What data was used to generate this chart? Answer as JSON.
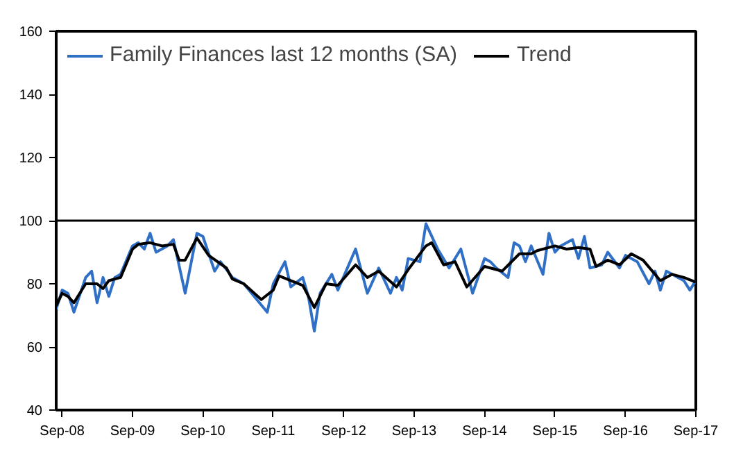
{
  "chart_data": {
    "type": "line",
    "xlim": [
      "2008-08",
      "2017-09"
    ],
    "ylim": [
      40,
      160
    ],
    "yticks": [
      40,
      60,
      80,
      100,
      120,
      140,
      160
    ],
    "xticks": [
      {
        "value": "2008-09",
        "label": "Sep-08"
      },
      {
        "value": "2009-09",
        "label": "Sep-09"
      },
      {
        "value": "2010-09",
        "label": "Sep-10"
      },
      {
        "value": "2011-09",
        "label": "Sep-11"
      },
      {
        "value": "2012-09",
        "label": "Sep-12"
      },
      {
        "value": "2013-09",
        "label": "Sep-13"
      },
      {
        "value": "2014-09",
        "label": "Sep-14"
      },
      {
        "value": "2015-09",
        "label": "Sep-15"
      },
      {
        "value": "2016-09",
        "label": "Sep-16"
      },
      {
        "value": "2017-09",
        "label": "Sep-17"
      }
    ],
    "grid": false,
    "legend": "top left",
    "ref_lines": [
      {
        "axis": "y",
        "value": 100,
        "color": "#000000"
      }
    ],
    "series": [
      {
        "name": "Family Finances last 12 months (SA)",
        "color": "#2f6fc6",
        "x": [
          "2008-08",
          "2008-09",
          "2008-10",
          "2008-11",
          "2009-01",
          "2009-02",
          "2009-03",
          "2009-04",
          "2009-05",
          "2009-06",
          "2009-07",
          "2009-09",
          "2009-10",
          "2009-11",
          "2009-12",
          "2010-01",
          "2010-03",
          "2010-04",
          "2010-06",
          "2010-08",
          "2010-09",
          "2010-11",
          "2010-12",
          "2011-02",
          "2011-04",
          "2011-08",
          "2011-09",
          "2011-11",
          "2011-12",
          "2012-02",
          "2012-03",
          "2012-04",
          "2012-05",
          "2012-07",
          "2012-08",
          "2012-11",
          "2013-01",
          "2013-03",
          "2013-05",
          "2013-06",
          "2013-07",
          "2013-08",
          "2013-10",
          "2013-11",
          "2014-01",
          "2014-03",
          "2014-05",
          "2014-07",
          "2014-09",
          "2014-10",
          "2014-11",
          "2015-01",
          "2015-02",
          "2015-03",
          "2015-04",
          "2015-05",
          "2015-07",
          "2015-08",
          "2015-09",
          "2015-10",
          "2015-12",
          "2016-01",
          "2016-02",
          "2016-03",
          "2016-05",
          "2016-06",
          "2016-08",
          "2016-09",
          "2016-11",
          "2017-01",
          "2017-02",
          "2017-03",
          "2017-04",
          "2017-06",
          "2017-07",
          "2017-08",
          "2017-09"
        ],
        "values": [
          72,
          78,
          77,
          71,
          82,
          84,
          74,
          82,
          76,
          82,
          83,
          92,
          93,
          91,
          96,
          90,
          92,
          94,
          77,
          96,
          95,
          84,
          87,
          82,
          80,
          71,
          80,
          87,
          79,
          82,
          76,
          65,
          77,
          83,
          78,
          91,
          77,
          85,
          77,
          82,
          78,
          88,
          87,
          99,
          91,
          85,
          91,
          77,
          88,
          87,
          85,
          82,
          93,
          92,
          87,
          92,
          83,
          96,
          90,
          92,
          94,
          88,
          95,
          85,
          86,
          90,
          85,
          89,
          87,
          80,
          84,
          78,
          84,
          82,
          81,
          78,
          81
        ]
      },
      {
        "name": "Trend",
        "color": "#000000",
        "x": [
          "2008-08",
          "2008-09",
          "2008-10",
          "2008-11",
          "2009-01",
          "2009-03",
          "2009-04",
          "2009-05",
          "2009-07",
          "2009-09",
          "2009-10",
          "2009-12",
          "2010-02",
          "2010-04",
          "2010-05",
          "2010-06",
          "2010-08",
          "2010-10",
          "2011-01",
          "2011-02",
          "2011-04",
          "2011-07",
          "2011-09",
          "2011-10",
          "2012-02",
          "2012-04",
          "2012-06",
          "2012-08",
          "2012-11",
          "2013-01",
          "2013-03",
          "2013-06",
          "2013-08",
          "2013-11",
          "2013-12",
          "2014-02",
          "2014-04",
          "2014-06",
          "2014-09",
          "2014-10",
          "2014-12",
          "2015-03",
          "2015-05",
          "2015-06",
          "2015-09",
          "2015-11",
          "2016-01",
          "2016-03",
          "2016-04",
          "2016-06",
          "2016-08",
          "2016-10",
          "2016-12",
          "2017-03",
          "2017-05",
          "2017-07",
          "2017-09"
        ],
        "values": [
          73,
          77,
          76,
          74,
          80,
          80,
          78.5,
          81,
          82,
          91,
          92.5,
          93,
          92,
          92.5,
          87.5,
          87.5,
          94.5,
          89,
          85,
          81.5,
          80,
          75,
          78,
          82.5,
          79.5,
          72.5,
          80,
          79.5,
          86,
          82,
          84,
          79,
          84.5,
          92,
          93,
          86,
          87,
          79,
          85.5,
          85,
          84,
          89.5,
          89.5,
          90.5,
          92,
          91,
          91.5,
          91,
          85.5,
          87.5,
          86,
          89.5,
          87.5,
          81,
          83,
          82,
          80.5
        ]
      }
    ]
  }
}
